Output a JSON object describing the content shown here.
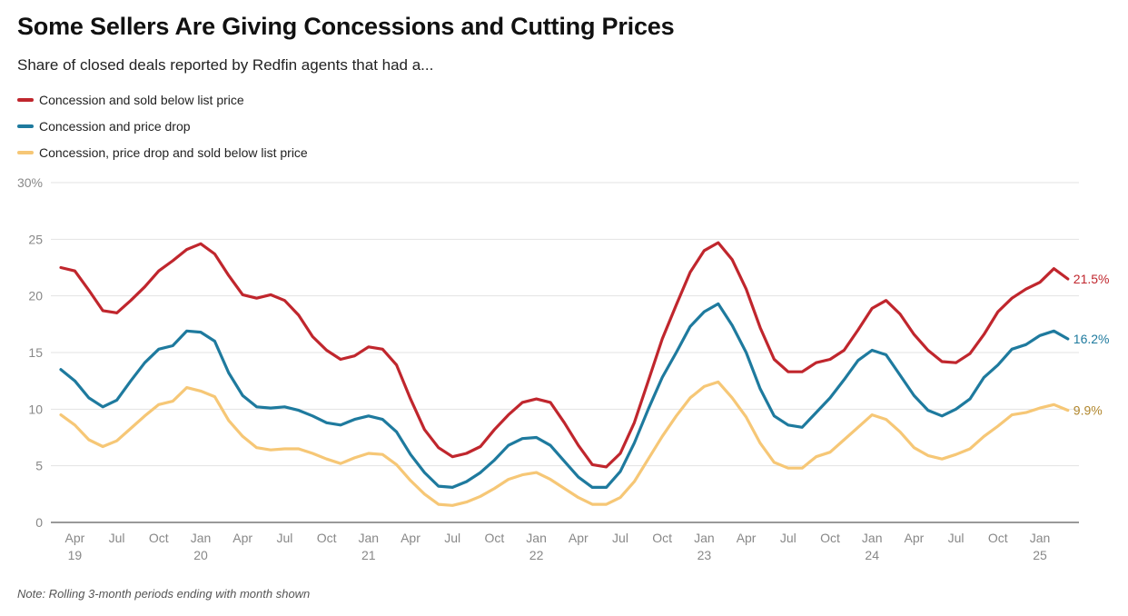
{
  "chart_data": {
    "type": "line",
    "title": "Some Sellers Are Giving Concessions and Cutting Prices",
    "subtitle": "Share of closed deals reported by Redfin agents that had a...",
    "note": "Note: Rolling 3-month periods ending with month shown",
    "xlabel": "",
    "ylabel": "",
    "ylim": [
      0,
      30
    ],
    "y_ticks": [
      {
        "value": 0,
        "label": "0"
      },
      {
        "value": 5,
        "label": "5"
      },
      {
        "value": 10,
        "label": "10"
      },
      {
        "value": 15,
        "label": "15"
      },
      {
        "value": 20,
        "label": "20"
      },
      {
        "value": 25,
        "label": "25"
      },
      {
        "value": 30,
        "label": "30%"
      }
    ],
    "x_ticks": [
      {
        "index": 1,
        "month": "Apr",
        "year": "19"
      },
      {
        "index": 4,
        "month": "Jul",
        "year": ""
      },
      {
        "index": 7,
        "month": "Oct",
        "year": ""
      },
      {
        "index": 10,
        "month": "Jan",
        "year": "20"
      },
      {
        "index": 13,
        "month": "Apr",
        "year": ""
      },
      {
        "index": 16,
        "month": "Jul",
        "year": ""
      },
      {
        "index": 19,
        "month": "Oct",
        "year": ""
      },
      {
        "index": 22,
        "month": "Jan",
        "year": "21"
      },
      {
        "index": 25,
        "month": "Apr",
        "year": ""
      },
      {
        "index": 28,
        "month": "Jul",
        "year": ""
      },
      {
        "index": 31,
        "month": "Oct",
        "year": ""
      },
      {
        "index": 34,
        "month": "Jan",
        "year": "22"
      },
      {
        "index": 37,
        "month": "Apr",
        "year": ""
      },
      {
        "index": 40,
        "month": "Jul",
        "year": ""
      },
      {
        "index": 43,
        "month": "Oct",
        "year": ""
      },
      {
        "index": 46,
        "month": "Jan",
        "year": "23"
      },
      {
        "index": 49,
        "month": "Apr",
        "year": ""
      },
      {
        "index": 52,
        "month": "Jul",
        "year": ""
      },
      {
        "index": 55,
        "month": "Oct",
        "year": ""
      },
      {
        "index": 58,
        "month": "Jan",
        "year": "24"
      },
      {
        "index": 61,
        "month": "Apr",
        "year": ""
      },
      {
        "index": 64,
        "month": "Jul",
        "year": ""
      },
      {
        "index": 67,
        "month": "Oct",
        "year": ""
      },
      {
        "index": 70,
        "month": "Jan",
        "year": "25"
      }
    ],
    "x_start": "Mar 2019",
    "x_end": "Feb 2025",
    "series": [
      {
        "name": "Concession and sold below list price",
        "color": "#c0262d",
        "end_label": "21.5%",
        "values": [
          22.5,
          22.2,
          20.5,
          18.7,
          18.5,
          19.6,
          20.8,
          22.2,
          23.1,
          24.1,
          24.6,
          23.7,
          21.8,
          20.1,
          19.8,
          20.1,
          19.6,
          18.3,
          16.4,
          15.2,
          14.4,
          14.7,
          15.5,
          15.3,
          13.9,
          10.9,
          8.2,
          6.6,
          5.8,
          6.1,
          6.7,
          8.2,
          9.5,
          10.6,
          10.9,
          10.6,
          8.8,
          6.8,
          5.1,
          4.9,
          6.1,
          8.8,
          12.5,
          16.2,
          19.2,
          22.1,
          24.0,
          24.7,
          23.2,
          20.6,
          17.2,
          14.4,
          13.3,
          13.3,
          14.1,
          14.4,
          15.2,
          17.0,
          18.9,
          19.6,
          18.4,
          16.6,
          15.2,
          14.2,
          14.1,
          14.9,
          16.6,
          18.6,
          19.8,
          20.6,
          21.2,
          22.4,
          21.5
        ]
      },
      {
        "name": "Concession and price drop",
        "color": "#1e7a9e",
        "end_label": "16.2%",
        "values": [
          13.5,
          12.5,
          11.0,
          10.2,
          10.8,
          12.5,
          14.1,
          15.3,
          15.6,
          16.9,
          16.8,
          16.0,
          13.2,
          11.2,
          10.2,
          10.1,
          10.2,
          9.9,
          9.4,
          8.8,
          8.6,
          9.1,
          9.4,
          9.1,
          8.0,
          6.0,
          4.4,
          3.2,
          3.1,
          3.6,
          4.4,
          5.5,
          6.8,
          7.4,
          7.5,
          6.8,
          5.4,
          4.0,
          3.1,
          3.1,
          4.5,
          7.0,
          10.0,
          12.8,
          15.0,
          17.3,
          18.6,
          19.3,
          17.4,
          15.0,
          11.8,
          9.4,
          8.6,
          8.4,
          9.7,
          11.0,
          12.6,
          14.3,
          15.2,
          14.8,
          13.0,
          11.2,
          9.9,
          9.4,
          10.0,
          10.9,
          12.8,
          13.9,
          15.3,
          15.7,
          16.5,
          16.9,
          16.2
        ]
      },
      {
        "name": "Concession, price drop and sold below list price",
        "color": "#f6c776",
        "end_label_color": "#b0862c",
        "end_label": "9.9%",
        "values": [
          9.5,
          8.6,
          7.3,
          6.7,
          7.2,
          8.3,
          9.4,
          10.4,
          10.7,
          11.9,
          11.6,
          11.1,
          9.0,
          7.6,
          6.6,
          6.4,
          6.5,
          6.5,
          6.1,
          5.6,
          5.2,
          5.7,
          6.1,
          6.0,
          5.1,
          3.7,
          2.5,
          1.6,
          1.5,
          1.8,
          2.3,
          3.0,
          3.8,
          4.2,
          4.4,
          3.8,
          3.0,
          2.2,
          1.6,
          1.6,
          2.2,
          3.6,
          5.6,
          7.6,
          9.4,
          11.0,
          12.0,
          12.4,
          11.0,
          9.3,
          7.0,
          5.3,
          4.8,
          4.8,
          5.8,
          6.2,
          7.3,
          8.4,
          9.5,
          9.1,
          8.0,
          6.6,
          5.9,
          5.6,
          6.0,
          6.5,
          7.6,
          8.5,
          9.5,
          9.7,
          10.1,
          10.4,
          9.9
        ]
      }
    ]
  }
}
